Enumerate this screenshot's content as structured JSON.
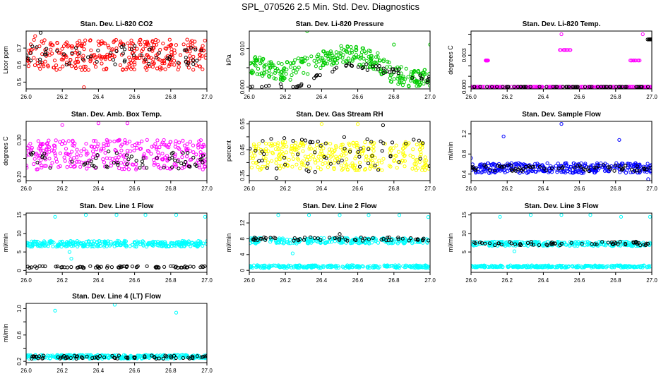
{
  "title": "SPL_070526  2.5 Min. Std. Dev. Diagnostics",
  "chart_data": [
    {
      "type": "scatter",
      "title": "Stan. Dev. Li-820 CO2",
      "ylabel": "Licor ppm",
      "xlim": [
        26.0,
        27.0
      ],
      "ylim": [
        0.46,
        0.8
      ],
      "xticks": [
        26.0,
        26.2,
        26.4,
        26.6,
        26.8,
        27.0
      ],
      "xticklabels": [
        "26.0",
        "26.2",
        "26.4",
        "26.6",
        "26.8",
        "27.0"
      ],
      "yticks": [
        0.5,
        0.6,
        0.7
      ],
      "yticklabels": [
        "0.5",
        "0.6",
        "0.7"
      ],
      "series": [
        {
          "color": "#ff0000",
          "kind": "band",
          "band": [
            0.57,
            0.75
          ],
          "n": 320,
          "outliers": [
            [
              26.32,
              0.47
            ],
            [
              26.05,
              0.77
            ]
          ]
        },
        {
          "color": "#000000",
          "kind": "band",
          "band": [
            0.6,
            0.72
          ],
          "n": 60,
          "outliers": [
            [
              26.08,
              0.79
            ]
          ]
        }
      ]
    },
    {
      "type": "scatter",
      "title": "Stan. Dev. Li-820 Pressure",
      "ylabel": "kPa",
      "xlim": [
        26.0,
        27.0
      ],
      "ylim": [
        -0.0005,
        0.0145
      ],
      "xticks": [
        26.0,
        26.2,
        26.4,
        26.6,
        26.8,
        27.0
      ],
      "xticklabels": [
        "26.0",
        "26.2",
        "26.4",
        "26.6",
        "26.8",
        "27.0"
      ],
      "yticks": [
        0.0,
        0.005,
        0.01
      ],
      "yticklabels": [
        "0.000",
        "",
        "0.010"
      ],
      "series": [
        {
          "color": "#00cc00",
          "kind": "wave",
          "center": [
            [
              26.0,
              0.006
            ],
            [
              26.2,
              0.004
            ],
            [
              26.35,
              0.006
            ],
            [
              26.5,
              0.009
            ],
            [
              26.7,
              0.007
            ],
            [
              26.8,
              0.003
            ],
            [
              27.0,
              0.002
            ]
          ],
          "spread": 0.0025,
          "n": 320,
          "outliers": [
            [
              26.32,
              0.0145
            ],
            [
              26.8,
              0.011
            ],
            [
              27.0,
              0.011
            ]
          ]
        },
        {
          "color": "#000000",
          "kind": "wave",
          "center": [
            [
              26.0,
              0.0005
            ],
            [
              26.3,
              0.0
            ],
            [
              26.5,
              0.006
            ],
            [
              26.7,
              0.005
            ],
            [
              27.0,
              0.002
            ]
          ],
          "spread": 0.001,
          "n": 55,
          "outliers": []
        }
      ]
    },
    {
      "type": "scatter",
      "title": "Stan. Dev. Li-820 Temp.",
      "ylabel": "degrees C",
      "xlim": [
        26.0,
        27.0
      ],
      "ylim": [
        -0.0002,
        0.0053
      ],
      "xticks": [
        26.0,
        26.2,
        26.4,
        26.6,
        26.8,
        27.0
      ],
      "xticklabels": [
        "26.0",
        "26.2",
        "26.4",
        "26.6",
        "26.8",
        "27.0"
      ],
      "yticks": [
        0.0,
        0.001,
        0.002,
        0.003,
        0.004,
        0.005
      ],
      "yticklabels": [
        "0.000",
        "",
        "",
        "0.003",
        "",
        ""
      ],
      "series": [
        {
          "color": "#ff00ff",
          "kind": "line",
          "y": 0.0,
          "n": 240,
          "clusters": [
            [
              26.08,
              26.1,
              0.0025
            ],
            [
              26.47,
              26.56,
              0.0035
            ],
            [
              26.88,
              26.97,
              0.0025
            ]
          ],
          "outliers": [
            [
              26.5,
              0.005
            ],
            [
              26.95,
              0.005
            ]
          ]
        },
        {
          "color": "#000000",
          "kind": "line",
          "y": 0.0,
          "n": 60,
          "clusters": [
            [
              26.97,
              27.0,
              0.0045
            ]
          ],
          "outliers": []
        }
      ]
    },
    {
      "type": "scatter",
      "title": "Stan. Dev. Amb. Box Temp.",
      "ylabel": "degrees C",
      "xlim": [
        26.0,
        27.0
      ],
      "ylim": [
        0.19,
        0.35
      ],
      "xticks": [
        26.0,
        26.2,
        26.4,
        26.6,
        26.8,
        27.0
      ],
      "xticklabels": [
        "26.0",
        "26.2",
        "26.4",
        "26.6",
        "26.8",
        "27.0"
      ],
      "yticks": [
        0.2,
        0.25,
        0.3
      ],
      "yticklabels": [
        "0.20",
        "",
        "0.30"
      ],
      "series": [
        {
          "color": "#ff00ff",
          "kind": "band",
          "band": [
            0.22,
            0.3
          ],
          "n": 300,
          "outliers": [
            [
              26.4,
              0.345
            ],
            [
              26.56,
              0.345
            ],
            [
              26.2,
              0.34
            ]
          ]
        },
        {
          "color": "#000000",
          "kind": "band",
          "band": [
            0.22,
            0.27
          ],
          "n": 60,
          "outliers": []
        }
      ]
    },
    {
      "type": "scatter",
      "title": "Stan. Dev. Gas Stream RH",
      "ylabel": "percent",
      "xlim": [
        26.0,
        27.0
      ],
      "ylim": [
        0.33,
        0.56
      ],
      "xticks": [
        26.0,
        26.2,
        26.4,
        26.6,
        26.8,
        27.0
      ],
      "xticklabels": [
        "26.0",
        "26.2",
        "26.4",
        "26.6",
        "26.8",
        "27.0"
      ],
      "yticks": [
        0.35,
        0.4,
        0.45,
        0.5,
        0.55
      ],
      "yticklabels": [
        "0.35",
        "",
        "0.45",
        "",
        "0.55"
      ],
      "series": [
        {
          "color": "#ffff00",
          "kind": "band",
          "band": [
            0.37,
            0.48
          ],
          "n": 320,
          "outliers": [
            [
              26.4,
              0.55
            ],
            [
              26.6,
              0.55
            ]
          ]
        },
        {
          "color": "#000000",
          "kind": "band",
          "band": [
            0.36,
            0.5
          ],
          "n": 60,
          "outliers": [
            [
              26.74,
              0.545
            ],
            [
              26.15,
              0.34
            ]
          ]
        }
      ]
    },
    {
      "type": "scatter",
      "title": "Stan. Dev. Sample Flow",
      "ylabel": "ml/min",
      "xlim": [
        26.0,
        27.0
      ],
      "ylim": [
        0.27,
        1.45
      ],
      "xticks": [
        26.0,
        26.2,
        26.4,
        26.6,
        26.8,
        27.0
      ],
      "xticklabels": [
        "26.0",
        "26.2",
        "26.4",
        "26.6",
        "26.8",
        "27.0"
      ],
      "yticks": [
        0.4,
        0.8,
        1.2
      ],
      "yticklabels": [
        "0.4",
        "0.8",
        "1.2"
      ],
      "series": [
        {
          "color": "#0000ff",
          "kind": "band",
          "band": [
            0.42,
            0.62
          ],
          "n": 320,
          "outliers": [
            [
              26.5,
              1.4
            ],
            [
              26.18,
              1.15
            ],
            [
              26.82,
              1.08
            ],
            [
              26.0,
              0.72
            ],
            [
              26.98,
              0.3
            ]
          ]
        },
        {
          "color": "#000000",
          "kind": "band",
          "band": [
            0.46,
            0.58
          ],
          "n": 70,
          "outliers": []
        }
      ]
    },
    {
      "type": "scatter",
      "title": "Stan. Dev. Line 1 Flow",
      "ylabel": "ml/min",
      "xlim": [
        26.0,
        27.0
      ],
      "ylim": [
        -0.5,
        15.5
      ],
      "xticks": [
        26.0,
        26.2,
        26.4,
        26.6,
        26.8,
        27.0
      ],
      "xticklabels": [
        "26.0",
        "26.2",
        "26.4",
        "26.6",
        "26.8",
        "27.0"
      ],
      "yticks": [
        0,
        5,
        10,
        15
      ],
      "yticklabels": [
        "0",
        "5",
        "10",
        "15"
      ],
      "series": [
        {
          "color": "#00ffff",
          "kind": "band",
          "band": [
            6.4,
            8.0
          ],
          "n": 320,
          "outliers": [
            [
              26.16,
              14.5
            ],
            [
              26.33,
              15.0
            ],
            [
              26.5,
              15.0
            ],
            [
              26.66,
              15.0
            ],
            [
              26.83,
              15.0
            ],
            [
              26.99,
              14.5
            ],
            [
              26.25,
              3.2
            ],
            [
              26.24,
              5.0
            ]
          ]
        },
        {
          "color": "#000000",
          "kind": "band",
          "band": [
            0.7,
            1.2
          ],
          "n": 70,
          "outliers": []
        }
      ]
    },
    {
      "type": "scatter",
      "title": "Stan. Dev. Line 2 Flow",
      "ylabel": "ml/min",
      "xlim": [
        26.0,
        27.0
      ],
      "ylim": [
        -0.5,
        14.5
      ],
      "xticks": [
        26.0,
        26.2,
        26.4,
        26.6,
        26.8,
        27.0
      ],
      "xticklabels": [
        "26.0",
        "26.2",
        "26.4",
        "26.6",
        "26.8",
        "27.0"
      ],
      "yticks": [
        0,
        4,
        8,
        12
      ],
      "yticklabels": [
        "0",
        "4",
        "8",
        "12"
      ],
      "series": [
        {
          "color": "#00ffff",
          "kind": "band",
          "band": [
            6.8,
            8.2
          ],
          "n": 240,
          "outliers": [
            [
              26.16,
              14.0
            ],
            [
              26.33,
              14.0
            ],
            [
              26.5,
              14.0
            ],
            [
              26.66,
              14.0
            ],
            [
              26.83,
              14.0
            ],
            [
              26.99,
              13.5
            ],
            [
              26.24,
              4.3
            ]
          ]
        },
        {
          "color": "#00ffff",
          "kind": "band",
          "band": [
            0.6,
            1.3
          ],
          "n": 240,
          "outliers": []
        },
        {
          "color": "#000000",
          "kind": "band",
          "band": [
            7.5,
            8.4
          ],
          "n": 60,
          "outliers": [
            [
              26.5,
              9.2
            ]
          ]
        }
      ]
    },
    {
      "type": "scatter",
      "title": "Stan. Dev. Line 3 Flow",
      "ylabel": "ml/min",
      "xlim": [
        26.0,
        27.0
      ],
      "ylim": [
        -0.5,
        15.5
      ],
      "xticks": [
        26.0,
        26.2,
        26.4,
        26.6,
        26.8,
        27.0
      ],
      "xticklabels": [
        "26.0",
        "26.2",
        "26.4",
        "26.6",
        "26.8",
        "27.0"
      ],
      "yticks": [
        5,
        10,
        15
      ],
      "yticklabels": [
        "5",
        "10",
        "15"
      ],
      "series": [
        {
          "color": "#00ffff",
          "kind": "band",
          "band": [
            6.6,
            7.8
          ],
          "n": 240,
          "outliers": [
            [
              26.16,
              14.5
            ],
            [
              26.33,
              15.0
            ],
            [
              26.5,
              15.0
            ],
            [
              26.66,
              15.0
            ],
            [
              26.83,
              14.5
            ],
            [
              26.99,
              14.5
            ],
            [
              26.24,
              5.2
            ]
          ]
        },
        {
          "color": "#00ffff",
          "kind": "band",
          "band": [
            0.8,
            1.4
          ],
          "n": 260,
          "outliers": []
        },
        {
          "color": "#000000",
          "kind": "band",
          "band": [
            6.8,
            7.8
          ],
          "n": 60,
          "outliers": []
        }
      ]
    },
    {
      "type": "scatter",
      "title": "Stan. Dev. Line 4 (LT) Flow",
      "ylabel": "ml/min",
      "xlim": [
        26.0,
        27.0
      ],
      "ylim": [
        0.18,
        1.08
      ],
      "xticks": [
        26.0,
        26.2,
        26.4,
        26.6,
        26.8,
        27.0
      ],
      "xticklabels": [
        "26.0",
        "26.2",
        "26.4",
        "26.6",
        "26.8",
        "27.0"
      ],
      "yticks": [
        0.2,
        0.4,
        0.6,
        0.8,
        1.0
      ],
      "yticklabels": [
        "0.2",
        "",
        "0.6",
        "",
        "1.0"
      ],
      "series": [
        {
          "color": "#00ffff",
          "kind": "band",
          "band": [
            0.24,
            0.3
          ],
          "n": 320,
          "outliers": [
            [
              26.16,
              0.97
            ],
            [
              26.49,
              1.06
            ],
            [
              26.83,
              0.94
            ]
          ]
        },
        {
          "color": "#000000",
          "kind": "band",
          "band": [
            0.24,
            0.29
          ],
          "n": 70,
          "outliers": []
        }
      ]
    }
  ]
}
